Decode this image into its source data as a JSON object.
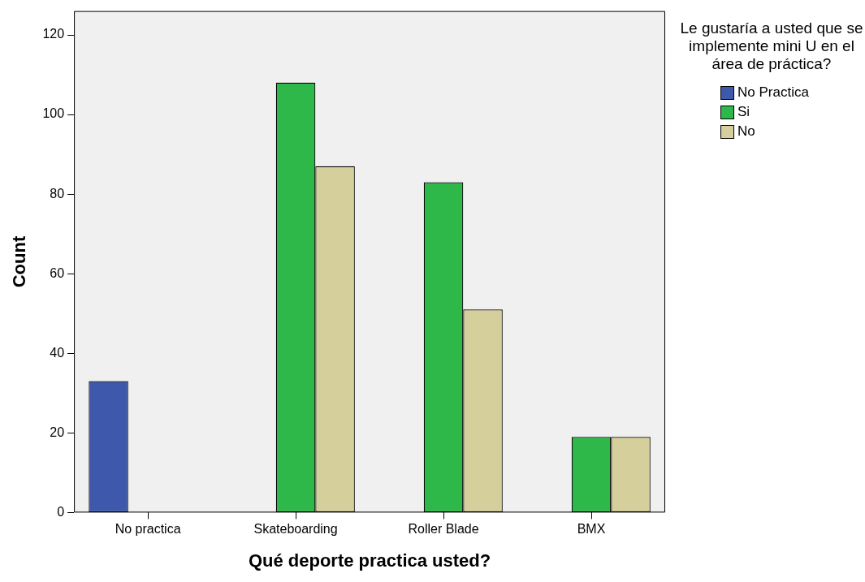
{
  "chart_data": {
    "type": "bar",
    "xlabel": "Qué deporte practica usted?",
    "ylabel": "Count",
    "legend_title": "Le gustaría a usted que se implemente mini U en el área de práctica?",
    "categories": [
      "No practica",
      "Skateboarding",
      "Roller Blade",
      "BMX"
    ],
    "series": [
      {
        "name": "No Practica",
        "color": "#3e58ac",
        "values": [
          33,
          null,
          null,
          null
        ]
      },
      {
        "name": "Si",
        "color": "#2fb84a",
        "values": [
          null,
          108,
          83,
          19
        ]
      },
      {
        "name": "No",
        "color": "#d5cf9c",
        "values": [
          null,
          87,
          51,
          19
        ]
      }
    ],
    "ylim": [
      0,
      126
    ],
    "yticks": [
      0,
      20,
      40,
      60,
      80,
      100,
      120
    ],
    "grid": false,
    "legend": "top right"
  }
}
